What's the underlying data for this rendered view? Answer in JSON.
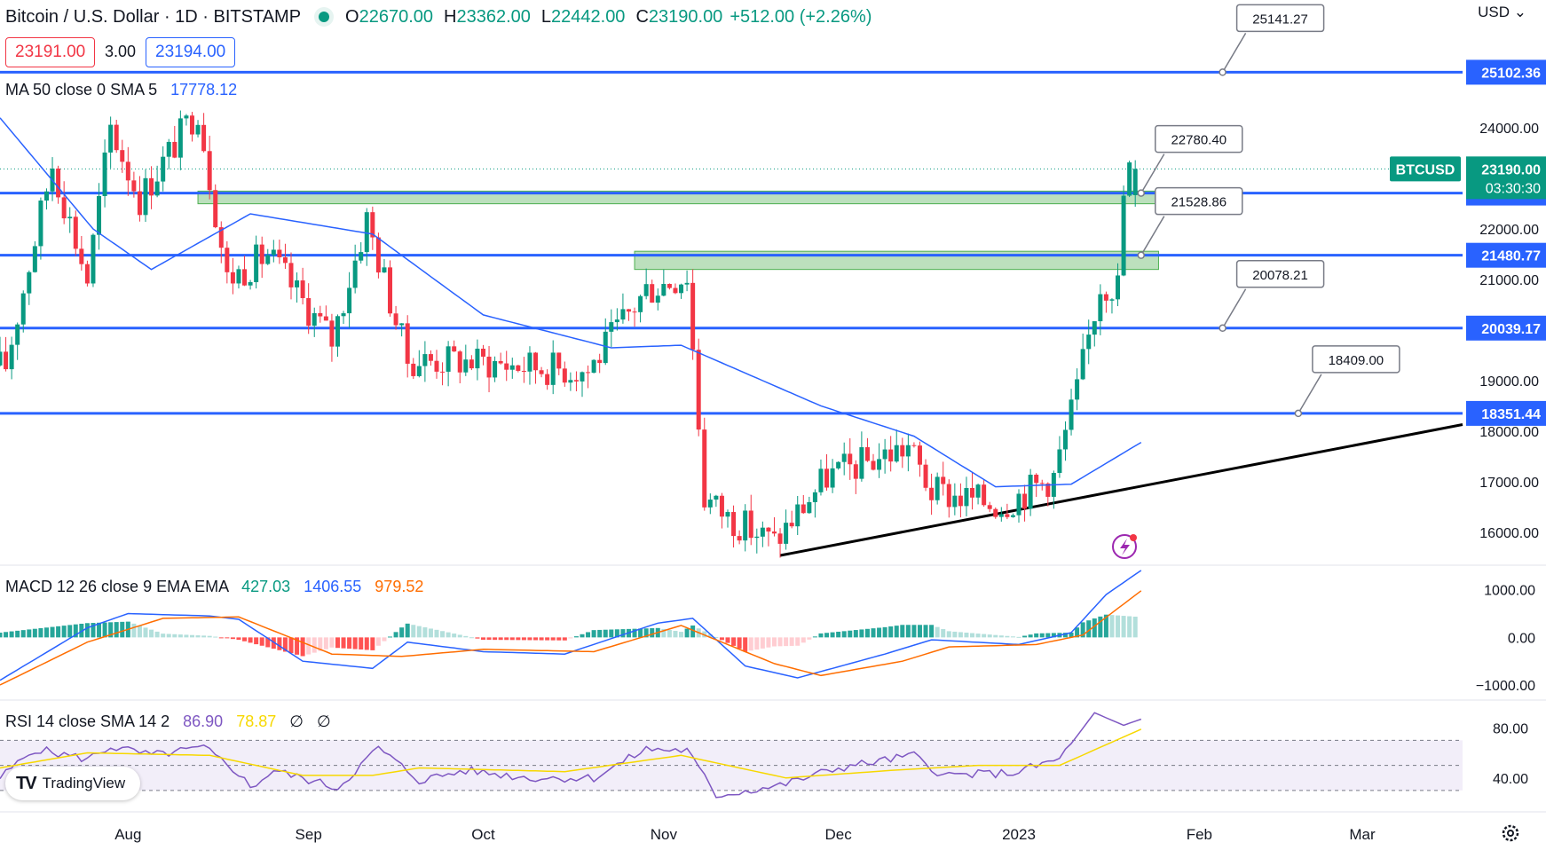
{
  "header": {
    "symbol_title": "Bitcoin / U.S. Dollar · 1D · BITSTAMP",
    "open_key": "O",
    "open": "22670.00",
    "high_key": "H",
    "high": "23362.00",
    "low_key": "L",
    "low": "22442.00",
    "close_key": "C",
    "close": "23190.00",
    "change": "+512.00 (+2.26%)",
    "currency": "USD",
    "bid": "23191.00",
    "spread": "3.00",
    "ask": "23194.00",
    "up_color": "#089981",
    "down_color": "#f23645",
    "line_color": "#2962ff"
  },
  "ma_label": {
    "title": "MA 50 close 0 SMA 5",
    "value": "17778.12"
  },
  "macd_label": {
    "title": "MACD 12 26 close 9 EMA EMA",
    "hist": "427.03",
    "macd": "1406.55",
    "signal": "979.52"
  },
  "rsi_label": {
    "title": "RSI 14 close SMA 14 2",
    "rsi": "86.90",
    "rsi_ma": "78.87",
    "extra1": "∅",
    "extra2": "∅"
  },
  "branding": {
    "logo_text": "TradingView"
  },
  "chart_data": [
    {
      "type": "candlestick",
      "title": "Bitcoin / U.S. Dollar · 1D · BITSTAMP",
      "x_tick_labels": [
        "Aug",
        "Sep",
        "Oct",
        "Nov",
        "Dec",
        "2023",
        "Feb",
        "Mar"
      ],
      "y_tick_labels": [
        "24000.00",
        "23000.00",
        "22000.00",
        "21000.00",
        "20000.00",
        "19000.00",
        "18000.00",
        "17000.00",
        "16000.00"
      ],
      "ylim": [
        15400,
        25900
      ],
      "last_price_label": "BTCUSD",
      "last_price": "23190.00",
      "countdown": "03:30:30",
      "ohlc_anchors": [
        {
          "date": "2022-07-12",
          "price": 19300
        },
        {
          "date": "2022-07-20",
          "price": 23300
        },
        {
          "date": "2022-07-26",
          "price": 21000
        },
        {
          "date": "2022-07-30",
          "price": 24000
        },
        {
          "date": "2022-08-04",
          "price": 22600
        },
        {
          "date": "2022-08-14",
          "price": 24400
        },
        {
          "date": "2022-08-19",
          "price": 21000
        },
        {
          "date": "2022-08-26",
          "price": 21500
        },
        {
          "date": "2022-09-06",
          "price": 19800
        },
        {
          "date": "2022-09-12",
          "price": 22200
        },
        {
          "date": "2022-09-19",
          "price": 19400
        },
        {
          "date": "2022-09-28",
          "price": 19400
        },
        {
          "date": "2022-10-09",
          "price": 19300
        },
        {
          "date": "2022-10-20",
          "price": 19200
        },
        {
          "date": "2022-10-30",
          "price": 20800
        },
        {
          "date": "2022-11-06",
          "price": 21100
        },
        {
          "date": "2022-11-09",
          "price": 16700
        },
        {
          "date": "2022-11-13",
          "price": 16300
        },
        {
          "date": "2022-11-21",
          "price": 15800
        },
        {
          "date": "2022-11-30",
          "price": 17100
        },
        {
          "date": "2022-12-14",
          "price": 17700
        },
        {
          "date": "2022-12-18",
          "price": 16800
        },
        {
          "date": "2022-12-30",
          "price": 16550
        },
        {
          "date": "2023-01-08",
          "price": 17100
        },
        {
          "date": "2023-01-12",
          "price": 18800
        },
        {
          "date": "2023-01-16",
          "price": 20900
        },
        {
          "date": "2023-01-19",
          "price": 20900
        },
        {
          "date": "2023-01-20",
          "price": 22670
        },
        {
          "date": "2023-01-21",
          "price": 23190
        }
      ],
      "last_candle": {
        "date": "2023-01-21",
        "open": 22670,
        "high": 23362,
        "low": 22442,
        "close": 23190
      },
      "ma50_anchors": [
        {
          "date": "2022-07-10",
          "value": 24200
        },
        {
          "date": "2022-07-26",
          "value": 22000
        },
        {
          "date": "2022-08-05",
          "value": 21200
        },
        {
          "date": "2022-08-22",
          "value": 22300
        },
        {
          "date": "2022-09-12",
          "value": 21900
        },
        {
          "date": "2022-10-01",
          "value": 20300
        },
        {
          "date": "2022-10-23",
          "value": 19650
        },
        {
          "date": "2022-11-04",
          "value": 19700
        },
        {
          "date": "2022-11-28",
          "value": 18500
        },
        {
          "date": "2022-12-14",
          "value": 17900
        },
        {
          "date": "2022-12-28",
          "value": 16900
        },
        {
          "date": "2023-01-10",
          "value": 16950
        },
        {
          "date": "2023-01-22",
          "value": 17778
        }
      ],
      "horizontal_levels": [
        {
          "price": 25102.36,
          "label": "25102.36",
          "callout": "25141.27",
          "callout_date": "2023-02-05"
        },
        {
          "price": 22711.41,
          "label": "22711.41",
          "callout": "22780.40",
          "callout_date": "2023-01-22"
        },
        {
          "price": 21480.77,
          "label": "21480.77",
          "callout": "21528.86",
          "callout_date": "2023-01-22"
        },
        {
          "price": 20039.17,
          "label": "20039.17",
          "callout": "20078.21",
          "callout_date": "2023-02-05"
        },
        {
          "price": 18351.44,
          "label": "18351.44",
          "callout": "18409.00",
          "callout_date": "2023-02-18"
        }
      ],
      "zones": [
        {
          "from_date": "2022-08-13",
          "to_date": "2023-01-25",
          "low": 22500,
          "high": 22750
        },
        {
          "from_date": "2022-10-27",
          "to_date": "2023-01-25",
          "low": 21200,
          "high": 21560
        }
      ],
      "trendline": [
        {
          "date": "2022-11-21",
          "price": 15540
        },
        {
          "date": "2023-03-31",
          "price": 18130
        }
      ]
    },
    {
      "type": "bar",
      "title": "MACD 12 26 close 9 EMA EMA",
      "y_tick_labels": [
        "1000.00",
        "0.00",
        "−1000.00"
      ],
      "ylim": [
        -1260,
        1460
      ],
      "macd_anchors": [
        {
          "date": "2022-07-10",
          "value": -900
        },
        {
          "date": "2022-07-25",
          "value": 200
        },
        {
          "date": "2022-08-01",
          "value": 500
        },
        {
          "date": "2022-08-15",
          "value": 450
        },
        {
          "date": "2022-08-20",
          "value": 380
        },
        {
          "date": "2022-08-31",
          "value": -500
        },
        {
          "date": "2022-09-12",
          "value": -650
        },
        {
          "date": "2022-09-18",
          "value": -100
        },
        {
          "date": "2022-10-01",
          "value": -300
        },
        {
          "date": "2022-10-15",
          "value": -350
        },
        {
          "date": "2022-10-31",
          "value": 300
        },
        {
          "date": "2022-11-06",
          "value": 400
        },
        {
          "date": "2022-11-15",
          "value": -600
        },
        {
          "date": "2022-11-24",
          "value": -850
        },
        {
          "date": "2022-12-09",
          "value": -350
        },
        {
          "date": "2022-12-17",
          "value": -50
        },
        {
          "date": "2023-01-01",
          "value": -150
        },
        {
          "date": "2023-01-10",
          "value": 100
        },
        {
          "date": "2023-01-16",
          "value": 900
        },
        {
          "date": "2023-01-22",
          "value": 1406.55
        }
      ],
      "signal_anchors": [
        {
          "date": "2022-07-10",
          "value": -1000
        },
        {
          "date": "2022-07-25",
          "value": -100
        },
        {
          "date": "2022-08-07",
          "value": 400
        },
        {
          "date": "2022-08-20",
          "value": 430
        },
        {
          "date": "2022-09-05",
          "value": -350
        },
        {
          "date": "2022-09-17",
          "value": -400
        },
        {
          "date": "2022-10-01",
          "value": -250
        },
        {
          "date": "2022-10-20",
          "value": -300
        },
        {
          "date": "2022-11-04",
          "value": 250
        },
        {
          "date": "2022-11-20",
          "value": -550
        },
        {
          "date": "2022-11-28",
          "value": -800
        },
        {
          "date": "2022-12-12",
          "value": -500
        },
        {
          "date": "2022-12-20",
          "value": -200
        },
        {
          "date": "2023-01-04",
          "value": -150
        },
        {
          "date": "2023-01-12",
          "value": 50
        },
        {
          "date": "2023-01-22",
          "value": 979.52
        }
      ],
      "histogram_last": "427.03"
    },
    {
      "type": "line",
      "title": "RSI 14 close SMA 14 2",
      "y_tick_labels": [
        "80.00",
        "40.00"
      ],
      "ylim": [
        20,
        100
      ],
      "bands": {
        "upper": 70,
        "middle": 50,
        "lower": 30
      },
      "rsi_anchors": [
        {
          "date": "2022-07-10",
          "value": 40
        },
        {
          "date": "2022-07-16",
          "value": 63
        },
        {
          "date": "2022-07-25",
          "value": 55
        },
        {
          "date": "2022-07-29",
          "value": 65
        },
        {
          "date": "2022-08-05",
          "value": 58
        },
        {
          "date": "2022-08-14",
          "value": 64
        },
        {
          "date": "2022-08-20",
          "value": 44
        },
        {
          "date": "2022-08-22",
          "value": 32
        },
        {
          "date": "2022-08-26",
          "value": 46
        },
        {
          "date": "2022-09-06",
          "value": 32
        },
        {
          "date": "2022-09-13",
          "value": 64
        },
        {
          "date": "2022-09-20",
          "value": 38
        },
        {
          "date": "2022-09-28",
          "value": 46
        },
        {
          "date": "2022-10-09",
          "value": 40
        },
        {
          "date": "2022-10-20",
          "value": 40
        },
        {
          "date": "2022-10-29",
          "value": 63
        },
        {
          "date": "2022-11-05",
          "value": 62
        },
        {
          "date": "2022-11-10",
          "value": 26
        },
        {
          "date": "2022-11-21",
          "value": 34
        },
        {
          "date": "2022-12-01",
          "value": 48
        },
        {
          "date": "2022-12-14",
          "value": 58
        },
        {
          "date": "2022-12-19",
          "value": 42
        },
        {
          "date": "2022-12-31",
          "value": 44
        },
        {
          "date": "2023-01-08",
          "value": 55
        },
        {
          "date": "2023-01-14",
          "value": 92
        },
        {
          "date": "2023-01-19",
          "value": 82
        },
        {
          "date": "2023-01-22",
          "value": 86.9
        }
      ],
      "rsi_ma_anchors": [
        {
          "date": "2022-07-10",
          "value": 48
        },
        {
          "date": "2022-07-25",
          "value": 60
        },
        {
          "date": "2022-08-15",
          "value": 58
        },
        {
          "date": "2022-08-31",
          "value": 42
        },
        {
          "date": "2022-09-12",
          "value": 42
        },
        {
          "date": "2022-09-20",
          "value": 48
        },
        {
          "date": "2022-10-15",
          "value": 45
        },
        {
          "date": "2022-11-04",
          "value": 58
        },
        {
          "date": "2022-11-22",
          "value": 40
        },
        {
          "date": "2022-12-10",
          "value": 46
        },
        {
          "date": "2022-12-25",
          "value": 50
        },
        {
          "date": "2023-01-08",
          "value": 50
        },
        {
          "date": "2023-01-22",
          "value": 78.87
        }
      ]
    }
  ]
}
